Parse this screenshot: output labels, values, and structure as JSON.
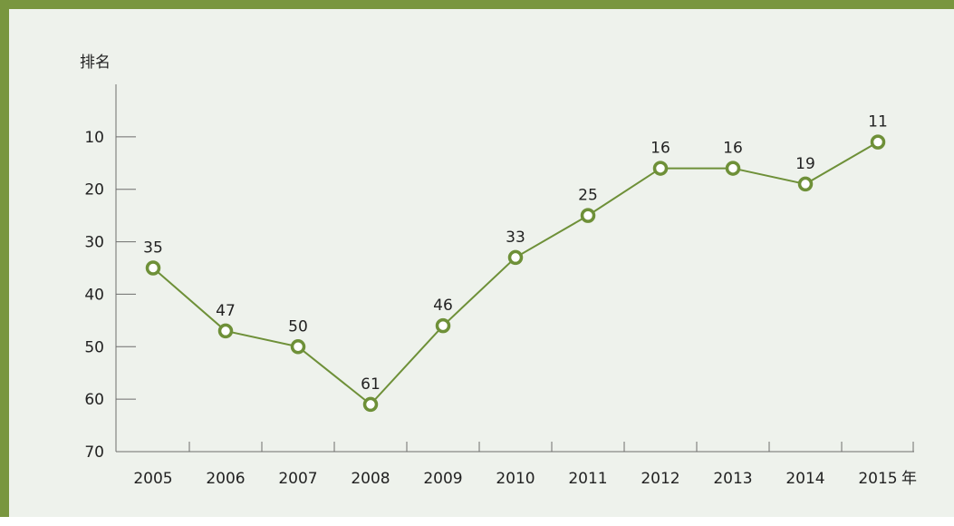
{
  "chart_data": {
    "type": "line",
    "ylabel": "排名",
    "x_unit": "年",
    "categories": [
      "2005",
      "2006",
      "2007",
      "2008",
      "2009",
      "2010",
      "2011",
      "2012",
      "2013",
      "2014",
      "2015"
    ],
    "series": [
      {
        "values": [
          35,
          47,
          50,
          61,
          46,
          33,
          25,
          16,
          16,
          19,
          11
        ]
      }
    ],
    "data_labels": [
      "35",
      "47",
      "50",
      "61",
      "46",
      "33",
      "25",
      "16",
      "16",
      "19",
      "11"
    ],
    "y_ticks": [
      10,
      20,
      30,
      40,
      50,
      60,
      70
    ],
    "y_tick_labels": [
      "10",
      "20",
      "30",
      "40",
      "50",
      "60",
      "70"
    ],
    "ylim": [
      0,
      70
    ],
    "y_inverted": true,
    "grid": false,
    "colors": {
      "frame": "#79963f",
      "background": "#eef2ec",
      "series": "#6e9038"
    }
  }
}
